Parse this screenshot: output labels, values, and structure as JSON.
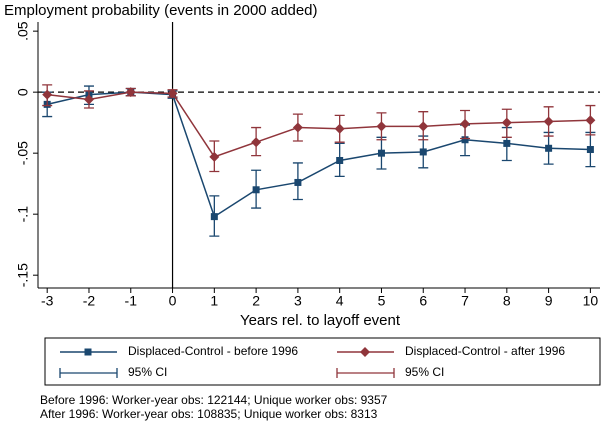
{
  "chart_data": {
    "type": "line",
    "title": "Employment probability (events in 2000 added)",
    "xlabel": "Years rel. to layoff event",
    "x": [
      -3,
      -2,
      -1,
      0,
      1,
      2,
      3,
      4,
      5,
      6,
      7,
      8,
      9,
      10
    ],
    "xlim": [
      -3.22,
      10.23
    ],
    "xticks": [
      -3,
      -2,
      -1,
      0,
      1,
      2,
      3,
      4,
      5,
      6,
      7,
      8,
      9,
      10
    ],
    "ylim": [
      -0.1605,
      0.0575
    ],
    "yticks": [
      {
        "value": 0.05,
        "label": ".05"
      },
      0,
      {
        "value": -0.05,
        "label": "-.05"
      },
      {
        "value": -0.1,
        "label": "-.1"
      },
      {
        "value": -0.15,
        "label": "-.15"
      }
    ],
    "reference_lines": {
      "x": 0,
      "y": 0
    },
    "series": [
      {
        "name": "Displaced-Control - before 1996",
        "ci_name": "95% CI",
        "color": "#1a476f",
        "marker": "square",
        "values": [
          -0.01,
          -0.002,
          0.0,
          -0.002,
          -0.102,
          -0.08,
          -0.074,
          -0.056,
          -0.05,
          -0.049,
          -0.039,
          -0.042,
          -0.046,
          -0.047
        ],
        "lower": [
          -0.02,
          -0.01,
          -0.003,
          -0.005,
          -0.118,
          -0.095,
          -0.088,
          -0.069,
          -0.063,
          -0.062,
          -0.052,
          -0.056,
          -0.059,
          -0.061
        ],
        "upper": [
          0.0,
          0.005,
          0.003,
          0.001,
          -0.085,
          -0.064,
          -0.058,
          -0.042,
          -0.037,
          -0.036,
          -0.027,
          -0.029,
          -0.033,
          -0.033
        ]
      },
      {
        "name": "Displaced-Control - after 1996",
        "ci_name": "95% CI",
        "color": "#90353b",
        "marker": "diamond",
        "values": [
          -0.002,
          -0.006,
          0.0,
          -0.001,
          -0.053,
          -0.041,
          -0.029,
          -0.03,
          -0.028,
          -0.028,
          -0.026,
          -0.025,
          -0.024,
          -0.023
        ],
        "lower": [
          -0.011,
          -0.013,
          -0.003,
          -0.004,
          -0.065,
          -0.052,
          -0.04,
          -0.041,
          -0.039,
          -0.039,
          -0.038,
          -0.037,
          -0.036,
          -0.035
        ],
        "upper": [
          0.006,
          0.001,
          0.003,
          0.002,
          -0.04,
          -0.029,
          -0.018,
          -0.019,
          -0.017,
          -0.016,
          -0.015,
          -0.014,
          -0.012,
          -0.011
        ]
      }
    ],
    "notes": [
      "Before 1996: Worker-year obs: 122144; Unique worker obs: 9357",
      "After 1996: Worker-year obs: 108835; Unique worker obs: 8313"
    ]
  }
}
